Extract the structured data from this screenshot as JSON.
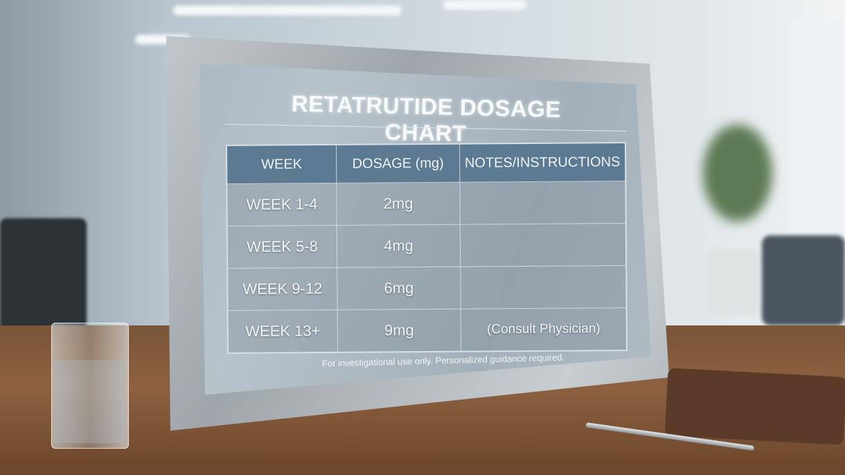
{
  "sign": {
    "title": "RETATRUTIDE DOSAGE CHART",
    "headers": [
      "WEEK",
      "DOSAGE (mg)",
      "NOTES/INSTRUCTIONS"
    ],
    "rows": [
      {
        "week": "WEEK 1-4",
        "dosage": "2mg",
        "notes": ""
      },
      {
        "week": "WEEK 5-8",
        "dosage": "4mg",
        "notes": ""
      },
      {
        "week": "WEEK 9-12",
        "dosage": "6mg",
        "notes": ""
      },
      {
        "week": "WEEK 13+",
        "dosage": "9mg",
        "notes": "(Consult Physician)"
      }
    ],
    "disclaimer": "For investigational use only. Personalized guidance required."
  },
  "colors": {
    "header": "#5d7a93",
    "frame": "#b4babe",
    "desk": "#7a5537"
  }
}
